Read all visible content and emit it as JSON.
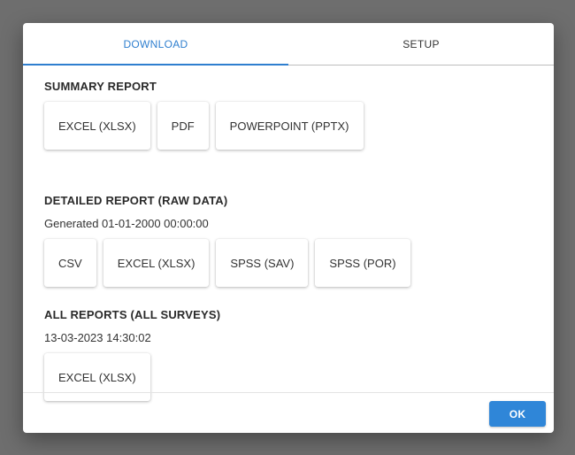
{
  "tabs": [
    {
      "label": "DOWNLOAD",
      "active": true
    },
    {
      "label": "SETUP",
      "active": false
    }
  ],
  "summary": {
    "title": "SUMMARY REPORT",
    "buttons": [
      "EXCEL (XLSX)",
      "PDF",
      "POWERPOINT (PPTX)"
    ]
  },
  "detailed": {
    "title": "DETAILED REPORT (RAW DATA)",
    "subtitle": "Generated 01-01-2000 00:00:00",
    "buttons": [
      "CSV",
      "EXCEL (XLSX)",
      "SPSS (SAV)",
      "SPSS (POR)"
    ]
  },
  "all_reports": {
    "title": "ALL REPORTS (ALL SURVEYS)",
    "subtitle": "13-03-2023 14:30:02",
    "buttons": [
      "EXCEL (XLSX)"
    ]
  },
  "footer": {
    "ok_label": "OK"
  },
  "colors": {
    "accent": "#2f7fcf",
    "ok_button": "#2f86d8",
    "overlay": "#6e6e6e"
  }
}
